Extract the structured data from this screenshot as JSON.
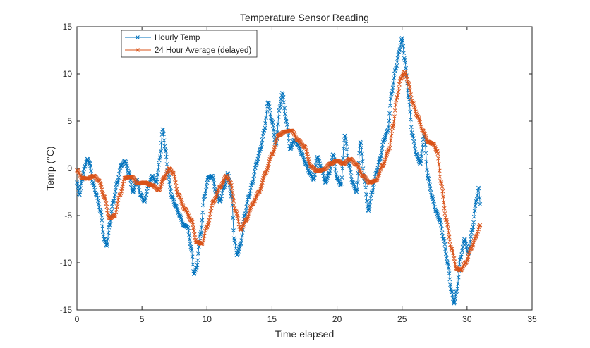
{
  "chart_data": {
    "type": "line",
    "title": "Temperature Sensor Reading",
    "xlabel": "Time elapsed",
    "ylabel": "Temp (°C)",
    "xlim": [
      0,
      35
    ],
    "ylim": [
      -15,
      15
    ],
    "xticks": [
      0,
      5,
      10,
      15,
      20,
      25,
      30,
      35
    ],
    "yticks": [
      -15,
      -10,
      -5,
      0,
      5,
      10,
      15
    ],
    "grid": false,
    "legend_position": "top-left",
    "marker": "x",
    "series": [
      {
        "name": "Hourly Temp",
        "color": "#0072BD",
        "control_points": [
          [
            0.0,
            -1.5
          ],
          [
            0.2,
            -2.8
          ],
          [
            0.4,
            -1.2
          ],
          [
            0.6,
            0.2
          ],
          [
            0.8,
            1.0
          ],
          [
            1.0,
            0.5
          ],
          [
            1.2,
            -1.5
          ],
          [
            1.5,
            -2.8
          ],
          [
            1.8,
            -4.5
          ],
          [
            2.1,
            -7.5
          ],
          [
            2.3,
            -8.2
          ],
          [
            2.5,
            -6.0
          ],
          [
            2.8,
            -3.5
          ],
          [
            3.1,
            -1.5
          ],
          [
            3.4,
            0.3
          ],
          [
            3.7,
            0.8
          ],
          [
            4.0,
            -0.5
          ],
          [
            4.3,
            -2.5
          ],
          [
            4.6,
            -1.2
          ],
          [
            4.9,
            -2.8
          ],
          [
            5.2,
            -3.5
          ],
          [
            5.5,
            -1.8
          ],
          [
            5.8,
            -0.8
          ],
          [
            6.1,
            -1.5
          ],
          [
            6.4,
            1.2
          ],
          [
            6.6,
            4.2
          ],
          [
            6.8,
            2.0
          ],
          [
            7.0,
            -0.5
          ],
          [
            7.3,
            -3.0
          ],
          [
            7.6,
            -4.0
          ],
          [
            7.9,
            -5.0
          ],
          [
            8.2,
            -6.0
          ],
          [
            8.5,
            -6.2
          ],
          [
            8.8,
            -8.5
          ],
          [
            9.0,
            -11.2
          ],
          [
            9.2,
            -10.5
          ],
          [
            9.5,
            -7.0
          ],
          [
            9.8,
            -3.0
          ],
          [
            10.1,
            -1.0
          ],
          [
            10.4,
            -0.8
          ],
          [
            10.7,
            -2.5
          ],
          [
            11.0,
            -3.5
          ],
          [
            11.3,
            -2.0
          ],
          [
            11.6,
            -0.5
          ],
          [
            11.9,
            -3.0
          ],
          [
            12.1,
            -7.5
          ],
          [
            12.3,
            -9.2
          ],
          [
            12.6,
            -8.0
          ],
          [
            12.9,
            -5.0
          ],
          [
            13.2,
            -3.0
          ],
          [
            13.5,
            -1.5
          ],
          [
            13.8,
            0.5
          ],
          [
            14.1,
            2.0
          ],
          [
            14.4,
            4.0
          ],
          [
            14.7,
            7.0
          ],
          [
            15.0,
            5.0
          ],
          [
            15.3,
            2.5
          ],
          [
            15.6,
            6.5
          ],
          [
            15.8,
            8.0
          ],
          [
            16.1,
            5.0
          ],
          [
            16.4,
            2.0
          ],
          [
            16.7,
            3.0
          ],
          [
            17.0,
            2.5
          ],
          [
            17.3,
            1.5
          ],
          [
            17.6,
            0.5
          ],
          [
            17.9,
            -0.5
          ],
          [
            18.2,
            -1.2
          ],
          [
            18.5,
            1.2
          ],
          [
            18.8,
            0.0
          ],
          [
            19.1,
            -1.5
          ],
          [
            19.4,
            -0.5
          ],
          [
            19.7,
            1.5
          ],
          [
            20.0,
            -1.0
          ],
          [
            20.3,
            -1.8
          ],
          [
            20.6,
            3.5
          ],
          [
            20.9,
            0.5
          ],
          [
            21.2,
            -1.5
          ],
          [
            21.5,
            -2.5
          ],
          [
            21.8,
            2.8
          ],
          [
            22.1,
            -1.0
          ],
          [
            22.4,
            -4.5
          ],
          [
            22.7,
            -2.5
          ],
          [
            23.0,
            -0.5
          ],
          [
            23.3,
            1.0
          ],
          [
            23.6,
            3.0
          ],
          [
            23.9,
            4.0
          ],
          [
            24.2,
            8.0
          ],
          [
            24.5,
            10.5
          ],
          [
            24.8,
            12.5
          ],
          [
            25.0,
            13.8
          ],
          [
            25.2,
            11.5
          ],
          [
            25.5,
            7.5
          ],
          [
            25.8,
            3.5
          ],
          [
            26.1,
            1.5
          ],
          [
            26.4,
            0.5
          ],
          [
            26.7,
            3.5
          ],
          [
            27.0,
            -1.0
          ],
          [
            27.3,
            -3.0
          ],
          [
            27.6,
            -4.5
          ],
          [
            27.9,
            -5.5
          ],
          [
            28.2,
            -7.5
          ],
          [
            28.5,
            -10.0
          ],
          [
            28.8,
            -13.0
          ],
          [
            29.0,
            -14.3
          ],
          [
            29.2,
            -13.0
          ],
          [
            29.5,
            -9.5
          ],
          [
            29.8,
            -7.5
          ],
          [
            30.1,
            -9.0
          ],
          [
            30.4,
            -6.5
          ],
          [
            30.7,
            -3.5
          ],
          [
            30.9,
            -2.0
          ],
          [
            31.0,
            -3.8
          ]
        ]
      },
      {
        "name": "24 Hour Average (delayed)",
        "color": "#D95319",
        "control_points": [
          [
            0.0,
            -0.2
          ],
          [
            0.4,
            -1.0
          ],
          [
            0.8,
            -1.1
          ],
          [
            1.3,
            -0.8
          ],
          [
            1.7,
            -1.3
          ],
          [
            2.1,
            -3.0
          ],
          [
            2.5,
            -5.3
          ],
          [
            2.9,
            -5.0
          ],
          [
            3.3,
            -2.8
          ],
          [
            3.7,
            -1.0
          ],
          [
            4.2,
            -0.9
          ],
          [
            4.7,
            -1.6
          ],
          [
            5.2,
            -1.5
          ],
          [
            5.8,
            -1.8
          ],
          [
            6.3,
            -2.3
          ],
          [
            6.7,
            -1.0
          ],
          [
            7.1,
            0.0
          ],
          [
            7.4,
            -0.5
          ],
          [
            7.8,
            -2.8
          ],
          [
            8.3,
            -4.3
          ],
          [
            8.8,
            -5.5
          ],
          [
            9.2,
            -7.8
          ],
          [
            9.6,
            -8.0
          ],
          [
            10.0,
            -6.2
          ],
          [
            10.5,
            -3.5
          ],
          [
            11.0,
            -2.0
          ],
          [
            11.5,
            -0.8
          ],
          [
            11.8,
            -1.5
          ],
          [
            12.2,
            -4.5
          ],
          [
            12.6,
            -6.5
          ],
          [
            13.0,
            -5.5
          ],
          [
            13.5,
            -3.8
          ],
          [
            14.0,
            -2.5
          ],
          [
            14.5,
            -0.5
          ],
          [
            15.0,
            1.5
          ],
          [
            15.5,
            3.5
          ],
          [
            16.0,
            3.9
          ],
          [
            16.5,
            4.0
          ],
          [
            17.0,
            3.0
          ],
          [
            17.5,
            2.3
          ],
          [
            18.0,
            0.2
          ],
          [
            18.5,
            -0.3
          ],
          [
            19.0,
            -0.1
          ],
          [
            19.5,
            0.5
          ],
          [
            20.0,
            0.8
          ],
          [
            20.5,
            0.5
          ],
          [
            21.0,
            1.0
          ],
          [
            21.5,
            0.4
          ],
          [
            22.0,
            -0.8
          ],
          [
            22.5,
            -1.5
          ],
          [
            23.0,
            -1.3
          ],
          [
            23.5,
            0.3
          ],
          [
            24.0,
            2.0
          ],
          [
            24.3,
            4.5
          ],
          [
            24.6,
            7.5
          ],
          [
            24.9,
            9.5
          ],
          [
            25.2,
            10.2
          ],
          [
            25.5,
            9.0
          ],
          [
            25.8,
            7.0
          ],
          [
            26.2,
            5.5
          ],
          [
            26.6,
            4.0
          ],
          [
            27.0,
            2.8
          ],
          [
            27.4,
            2.6
          ],
          [
            27.7,
            1.8
          ],
          [
            28.0,
            -1.5
          ],
          [
            28.4,
            -5.5
          ],
          [
            28.8,
            -8.5
          ],
          [
            29.2,
            -10.6
          ],
          [
            29.5,
            -10.8
          ],
          [
            29.9,
            -10.0
          ],
          [
            30.3,
            -8.5
          ],
          [
            30.7,
            -7.2
          ],
          [
            31.0,
            -6.0
          ]
        ]
      }
    ]
  }
}
